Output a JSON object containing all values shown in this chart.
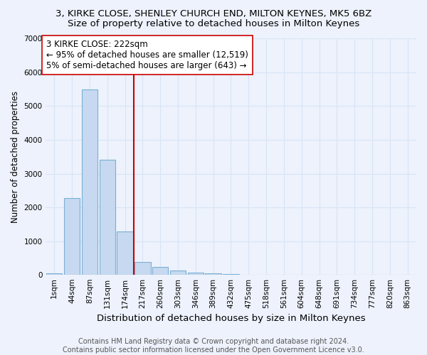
{
  "title1": "3, KIRKE CLOSE, SHENLEY CHURCH END, MILTON KEYNES, MK5 6BZ",
  "title2": "Size of property relative to detached houses in Milton Keynes",
  "xlabel": "Distribution of detached houses by size in Milton Keynes",
  "ylabel": "Number of detached properties",
  "categories": [
    "1sqm",
    "44sqm",
    "87sqm",
    "131sqm",
    "174sqm",
    "217sqm",
    "260sqm",
    "303sqm",
    "346sqm",
    "389sqm",
    "432sqm",
    "475sqm",
    "518sqm",
    "561sqm",
    "604sqm",
    "648sqm",
    "691sqm",
    "734sqm",
    "777sqm",
    "820sqm",
    "863sqm"
  ],
  "values": [
    50,
    2270,
    5480,
    3400,
    1290,
    380,
    230,
    130,
    80,
    50,
    20,
    10,
    5,
    2,
    1,
    1,
    0,
    0,
    0,
    0,
    0
  ],
  "bar_color": "#c6d9f0",
  "bar_edge_color": "#7bafd4",
  "vline_color": "#cc0000",
  "vline_xindex": 4.5,
  "annotation_line1": "3 KIRKE CLOSE: 222sqm",
  "annotation_line2": "← 95% of detached houses are smaller (12,519)",
  "annotation_line3": "5% of semi-detached houses are larger (643) →",
  "annotation_box_color": "white",
  "annotation_box_edge": "#cc0000",
  "annotation_fontsize": 8.5,
  "ylim": [
    0,
    7000
  ],
  "yticks": [
    0,
    1000,
    2000,
    3000,
    4000,
    5000,
    6000,
    7000
  ],
  "background_color": "#edf2fc",
  "grid_color": "#d8e4f5",
  "footer": "Contains HM Land Registry data © Crown copyright and database right 2024.\nContains public sector information licensed under the Open Government Licence v3.0.",
  "title1_fontsize": 9.5,
  "title2_fontsize": 9.5,
  "xlabel_fontsize": 9.5,
  "ylabel_fontsize": 8.5,
  "tick_fontsize": 7.5,
  "footer_fontsize": 7.0
}
